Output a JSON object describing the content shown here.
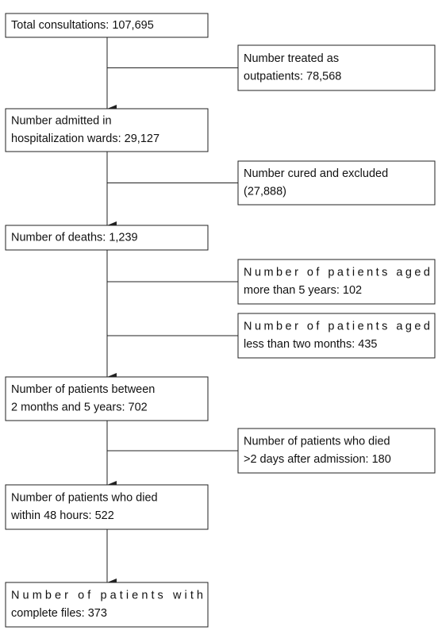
{
  "nodes": [
    {
      "lines": [
        "Total consultations: 107,695"
      ]
    },
    {
      "lines": [
        "Number treated as",
        "outpatients: 78,568"
      ]
    },
    {
      "lines": [
        "Number admitted in",
        "hospitalization wards: 29,127"
      ]
    },
    {
      "lines": [
        "Number cured and excluded",
        "(27,888)"
      ]
    },
    {
      "lines": [
        "Number of deaths: 1,239"
      ]
    },
    {
      "lines": [
        "Number of patients aged",
        "more than 5 years: 102"
      ]
    },
    {
      "lines": [
        "Number of patients aged",
        "less than two months: 435"
      ]
    },
    {
      "lines": [
        "Number of patients between",
        "2 months and 5 years: 702"
      ]
    },
    {
      "lines": [
        "Number of patients who died",
        ">2 days after admission: 180"
      ]
    },
    {
      "lines": [
        "Number of patients who died",
        "within 48 hours: 522"
      ]
    },
    {
      "lines": [
        "Number of patients with",
        "complete files: 373"
      ]
    }
  ]
}
